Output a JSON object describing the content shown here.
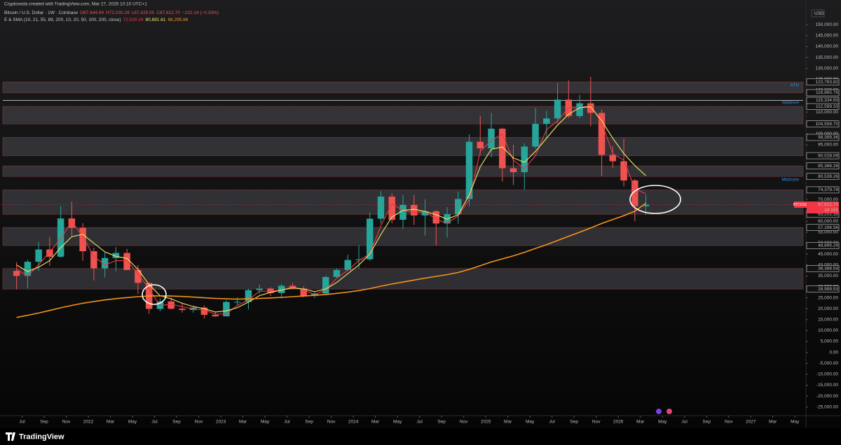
{
  "header": {
    "author_line": "Cryptoseda created with TradingView.com, Mar 27, 2026 10:10 UTC+1",
    "symbol": "Bitcoin / U.S. Dollar · 1W · Coinbase",
    "ohlc": [
      "O67,844.94",
      "H72,030.29",
      "L67,425.00",
      "C67,622.70",
      "−222.24 (−0.33%)"
    ],
    "indicator": "E & SMA (10, 21, 55, 89, 200, 10, 20, 50, 100, 200, close)",
    "currency": "USD"
  },
  "footer_brand": "TradingView",
  "chart_data": {
    "type": "candlestick",
    "x": [
      "2021-06",
      "2021-07",
      "2021-08",
      "2021-09",
      "2021-10",
      "2021-11",
      "2021-12",
      "2022-01",
      "2022-02",
      "2022-03",
      "2022-04",
      "2022-05",
      "2022-06",
      "2022-07",
      "2022-08",
      "2022-09",
      "2022-10",
      "2022-11",
      "2022-12",
      "2023-01",
      "2023-02",
      "2023-03",
      "2023-04",
      "2023-05",
      "2023-06",
      "2023-07",
      "2023-08",
      "2023-09",
      "2023-10",
      "2023-11",
      "2023-12",
      "2024-01",
      "2024-02",
      "2024-03",
      "2024-04",
      "2024-05",
      "2024-06",
      "2024-07",
      "2024-08",
      "2024-09",
      "2024-10",
      "2024-11",
      "2024-12",
      "2025-01",
      "2025-02",
      "2025-03",
      "2025-04",
      "2025-05",
      "2025-06",
      "2025-07",
      "2025-08",
      "2025-09",
      "2025-10",
      "2025-11",
      "2025-12",
      "2026-01",
      "2026-02",
      "2026-03"
    ],
    "open": [
      37300,
      35000,
      41500,
      47100,
      43800,
      61300,
      57000,
      46300,
      38500,
      43200,
      45500,
      37700,
      31800,
      19900,
      23300,
      20000,
      19400,
      20500,
      17200,
      16500,
      23100,
      23100,
      28500,
      29200,
      27200,
      30500,
      29200,
      25900,
      27000,
      34500,
      37700,
      42300,
      42600,
      61200,
      71300,
      60700,
      67500,
      62700,
      64600,
      59000,
      63300,
      70200,
      96400,
      93400,
      102400,
      84300,
      82500,
      94200,
      104600,
      107100,
      115700,
      108200,
      114000,
      109600,
      90400,
      87500,
      78700,
      66900
    ],
    "high": [
      41300,
      42400,
      50500,
      52900,
      67000,
      69000,
      59100,
      47900,
      45800,
      48200,
      47400,
      40000,
      31900,
      24700,
      25200,
      22800,
      21100,
      21500,
      18400,
      23900,
      25200,
      29200,
      31000,
      29800,
      31400,
      31800,
      30200,
      27500,
      35200,
      38400,
      44700,
      48900,
      64000,
      73800,
      72800,
      72000,
      72000,
      70000,
      65100,
      66500,
      73600,
      99800,
      108300,
      109600,
      102800,
      95000,
      95800,
      111900,
      110500,
      123200,
      124500,
      117900,
      126200,
      111000,
      94600,
      97900,
      79300,
      72030.29
    ],
    "low": [
      28800,
      29300,
      37300,
      39600,
      43300,
      53300,
      42000,
      32900,
      34300,
      37200,
      37600,
      26700,
      17600,
      18800,
      19600,
      18200,
      18200,
      15500,
      16300,
      16500,
      21400,
      19600,
      26900,
      25800,
      24800,
      28900,
      25200,
      24900,
      26600,
      34100,
      37600,
      38500,
      41900,
      59000,
      59100,
      56500,
      58400,
      53500,
      49000,
      52500,
      58900,
      66800,
      90500,
      89200,
      78200,
      76600,
      74400,
      93400,
      98200,
      105100,
      107300,
      107300,
      103500,
      80600,
      84400,
      76000,
      60000,
      63000
    ],
    "close": [
      35000,
      41500,
      47100,
      43800,
      61300,
      57000,
      46300,
      38500,
      43200,
      45500,
      37700,
      31800,
      19900,
      23300,
      20000,
      19400,
      20500,
      17200,
      16500,
      23100,
      23100,
      28500,
      29200,
      27200,
      30500,
      29200,
      25900,
      27000,
      34500,
      37700,
      42300,
      42600,
      61200,
      71300,
      60700,
      67500,
      62700,
      64600,
      59000,
      63300,
      70200,
      96400,
      93400,
      102400,
      84300,
      82500,
      94200,
      104600,
      107100,
      115700,
      108200,
      114000,
      109600,
      90400,
      87500,
      78700,
      66900,
      67622.7
    ],
    "up_color": "#26a69a",
    "down_color": "#ef5350",
    "series": [
      {
        "name": "EMA 10",
        "color": "#f23645",
        "legend_label": "72,539.34",
        "values": [
          38000,
          35000,
          40000,
          46000,
          52000,
          60000,
          53000,
          44000,
          40000,
          42000,
          42000,
          36000,
          29000,
          21500,
          22000,
          21000,
          19800,
          19500,
          17500,
          17500,
          21500,
          24000,
          28000,
          28000,
          28500,
          30000,
          28500,
          26500,
          28500,
          34000,
          37500,
          42000,
          45000,
          58000,
          68000,
          65000,
          64000,
          64500,
          61000,
          59000,
          62500,
          70000,
          92000,
          97000,
          100000,
          88000,
          84000,
          90000,
          102000,
          106000,
          112000,
          112000,
          113000,
          105000,
          91000,
          88000,
          75000,
          72539.34
        ]
      },
      {
        "name": "EMA 21",
        "color": "#f5e663",
        "legend_label": "80,891.61",
        "values": [
          40000,
          37000,
          39000,
          42000,
          48000,
          53000,
          54000,
          50000,
          46000,
          44000,
          43000,
          38000,
          31000,
          26000,
          24500,
          22500,
          21000,
          20000,
          18500,
          19000,
          20500,
          23000,
          26000,
          27500,
          28500,
          29500,
          29000,
          27800,
          29000,
          32000,
          36000,
          40000,
          45000,
          54000,
          62000,
          65000,
          65500,
          64500,
          63000,
          61000,
          63000,
          72000,
          85000,
          93000,
          94000,
          89000,
          87000,
          92000,
          98000,
          104000,
          109000,
          112000,
          112500,
          106000,
          98000,
          91000,
          85500,
          80891.61
        ]
      },
      {
        "name": "SMA 200",
        "color": "#f7931a",
        "legend_label": "68,295.66",
        "values": [
          16000,
          17000,
          18000,
          19200,
          20400,
          21500,
          22500,
          23300,
          24000,
          24600,
          25100,
          25500,
          25800,
          25900,
          25800,
          25600,
          25300,
          25000,
          24700,
          24500,
          24400,
          24500,
          24700,
          24900,
          25200,
          25500,
          25800,
          26100,
          26500,
          27000,
          27600,
          28300,
          29200,
          30300,
          31300,
          32200,
          33100,
          34000,
          34800,
          35600,
          36600,
          38000,
          39700,
          41400,
          42800,
          44200,
          45800,
          47600,
          49300,
          51200,
          53100,
          55000,
          57000,
          59000,
          60800,
          62600,
          64600,
          68295.66
        ]
      }
    ],
    "xlim": [
      "2021-05",
      "2027-06"
    ],
    "xticks": [
      {
        "value": "2021-07",
        "label": "Jul"
      },
      {
        "value": "2021-09",
        "label": "Sep"
      },
      {
        "value": "2021-11",
        "label": "Nov"
      },
      {
        "value": "2022-01",
        "label": "2022"
      },
      {
        "value": "2022-03",
        "label": "Mar"
      },
      {
        "value": "2022-05",
        "label": "May"
      },
      {
        "value": "2022-07",
        "label": "Jul"
      },
      {
        "value": "2022-09",
        "label": "Sep"
      },
      {
        "value": "2022-11",
        "label": "Nov"
      },
      {
        "value": "2023-01",
        "label": "2023"
      },
      {
        "value": "2023-03",
        "label": "Mar"
      },
      {
        "value": "2023-05",
        "label": "May"
      },
      {
        "value": "2023-07",
        "label": "Jul"
      },
      {
        "value": "2023-09",
        "label": "Sep"
      },
      {
        "value": "2023-11",
        "label": "Nov"
      },
      {
        "value": "2024-01",
        "label": "2024"
      },
      {
        "value": "2024-03",
        "label": "Mar"
      },
      {
        "value": "2024-05",
        "label": "May"
      },
      {
        "value": "2024-07",
        "label": "Jul"
      },
      {
        "value": "2024-09",
        "label": "Sep"
      },
      {
        "value": "2024-11",
        "label": "Nov"
      },
      {
        "value": "2025-01",
        "label": "2025"
      },
      {
        "value": "2025-03",
        "label": "Mar"
      },
      {
        "value": "2025-05",
        "label": "May"
      },
      {
        "value": "2025-07",
        "label": "Jul"
      },
      {
        "value": "2025-09",
        "label": "Sep"
      },
      {
        "value": "2025-11",
        "label": "Nov"
      },
      {
        "value": "2026-01",
        "label": "2026"
      },
      {
        "value": "2026-03",
        "label": "Mar"
      },
      {
        "value": "2026-05",
        "label": "May"
      },
      {
        "value": "2026-07",
        "label": "Jul"
      },
      {
        "value": "2026-09",
        "label": "Sep"
      },
      {
        "value": "2026-11",
        "label": "Nov"
      },
      {
        "value": "2027-01",
        "label": "2027"
      },
      {
        "value": "2027-03",
        "label": "Mar"
      },
      {
        "value": "2027-05",
        "label": "May"
      }
    ],
    "ylim": [
      -28300,
      161300
    ],
    "yticks": [
      {
        "value": 150000,
        "label": "150,000.00"
      },
      {
        "value": 145000,
        "label": "145,000.00"
      },
      {
        "value": 140000,
        "label": "140,000.00"
      },
      {
        "value": 135000,
        "label": "135,000.00"
      },
      {
        "value": 130000,
        "label": "130,000.00"
      },
      {
        "value": 125000,
        "label": "125,000.00"
      },
      {
        "value": 120000,
        "label": "120,000.00"
      },
      {
        "value": 115000,
        "label": "115,000.00"
      },
      {
        "value": 110000,
        "label": "110,000.00"
      },
      {
        "value": 105000,
        "label": "105,000.00"
      },
      {
        "value": 100000,
        "label": "100,000.00"
      },
      {
        "value": 95000,
        "label": "95,000.00"
      },
      {
        "value": 90000,
        "label": "90,000.00"
      },
      {
        "value": 85000,
        "label": "85,000.00"
      },
      {
        "value": 80000,
        "label": "80,000.00"
      },
      {
        "value": 75000,
        "label": "75,000.00"
      },
      {
        "value": 70000,
        "label": "70,000.00"
      },
      {
        "value": 65000,
        "label": "65,000.00"
      },
      {
        "value": 60000,
        "label": "60,000.00"
      },
      {
        "value": 55000,
        "label": "55,000.00"
      },
      {
        "value": 50000,
        "label": "50,000.00"
      },
      {
        "value": 45000,
        "label": "45,000.00"
      },
      {
        "value": 40000,
        "label": "40,000.00"
      },
      {
        "value": 35000,
        "label": "35,000.00"
      },
      {
        "value": 30000,
        "label": "30,000.00"
      },
      {
        "value": 25000,
        "label": "25,000.00"
      },
      {
        "value": 20000,
        "label": "20,000.00"
      },
      {
        "value": 15000,
        "label": "15,000.00"
      },
      {
        "value": 10000,
        "label": "10,000.00"
      },
      {
        "value": 5000,
        "label": "5,000.00"
      },
      {
        "value": 0,
        "label": "0.00"
      },
      {
        "value": -5000,
        "label": "-5,000.00"
      },
      {
        "value": -10000,
        "label": "-10,000.00"
      },
      {
        "value": -15000,
        "label": "-15,000.00"
      },
      {
        "value": -20000,
        "label": "-20,000.00"
      },
      {
        "value": -25000,
        "label": "-25,000.00"
      }
    ],
    "zones": [
      {
        "top": {
          "value": 123783.82,
          "label": "123,783.82"
        },
        "bottom": {
          "value": 118865.76,
          "label": "118,865.76"
        }
      },
      {
        "top": {
          "value": 112599.33,
          "label": "112,599.33"
        },
        "bottom": {
          "value": 104558.7,
          "label": "104,558.70"
        }
      },
      {
        "top": {
          "value": 98399.36,
          "label": "98,399.36"
        },
        "bottom": {
          "value": 90028.09,
          "label": "90,028.09"
        }
      },
      {
        "top": {
          "value": 85366.26,
          "label": "85,366.26"
        },
        "bottom": {
          "value": 80539.26,
          "label": "80,539.26"
        }
      },
      {
        "top": {
          "value": 74379.74,
          "label": "74,379.74"
        },
        "bottom": {
          "value": 63202.35,
          "label": "63,202.35"
        }
      },
      {
        "top": {
          "value": 57166.56,
          "label": "57,166.56"
        },
        "bottom": {
          "value": 48895.29,
          "label": "48,895.29"
        }
      },
      {
        "top": {
          "value": 38388.54,
          "label": "38,388.54"
        },
        "bottom": {
          "value": 28999.53,
          "label": "28,999.53"
        }
      }
    ],
    "zone_color": "#4a4a52",
    "levels": [
      {
        "value": 115334.93,
        "label": "115,334.93"
      }
    ],
    "level_color": "#e6e6e6",
    "annotations": [
      "ATH",
      "Midlevel",
      "Midzone"
    ],
    "annotation_color": "#2f8fe0",
    "price_label": {
      "symbol": "BTCUSD",
      "value": {
        "value": 67622.7,
        "label": "67,622.70"
      },
      "countdown": "2d 15h",
      "color": "#f23645"
    }
  }
}
